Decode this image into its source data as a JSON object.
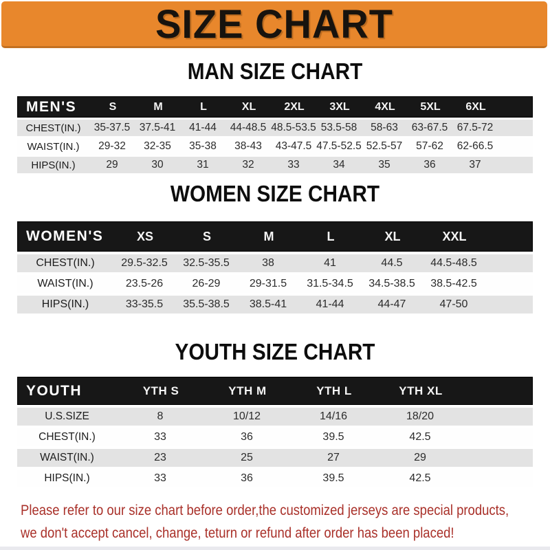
{
  "banner": {
    "title": "SIZE CHART",
    "bg_color": "#E8872C",
    "text_color": "#17130E"
  },
  "sections": [
    {
      "heading": "MAN SIZE CHART",
      "header_label": "MEN'S",
      "columns": [
        "S",
        "M",
        "L",
        "XL",
        "2XL",
        "3XL",
        "4XL",
        "5XL",
        "6XL"
      ],
      "rows": [
        {
          "label": "CHEST(IN.)",
          "values": [
            "35-37.5",
            "37.5-41",
            "41-44",
            "44-48.5",
            "48.5-53.5",
            "53.5-58",
            "58-63",
            "63-67.5",
            "67.5-72"
          ]
        },
        {
          "label": "WAIST(IN.)",
          "values": [
            "29-32",
            "32-35",
            "35-38",
            "38-43",
            "43-47.5",
            "47.5-52.5",
            "52.5-57",
            "57-62",
            "62-66.5"
          ]
        },
        {
          "label": "HIPS(IN.)",
          "values": [
            "29",
            "30",
            "31",
            "32",
            "33",
            "34",
            "35",
            "36",
            "37"
          ]
        }
      ]
    },
    {
      "heading": "WOMEN SIZE CHART",
      "header_label": "WOMEN'S",
      "columns": [
        "XS",
        "S",
        "M",
        "L",
        "XL",
        "XXL"
      ],
      "rows": [
        {
          "label": "CHEST(IN.)",
          "values": [
            "29.5-32.5",
            "32.5-35.5",
            "38",
            "41",
            "44.5",
            "44.5-48.5"
          ]
        },
        {
          "label": "WAIST(IN.)",
          "values": [
            "23.5-26",
            "26-29",
            "29-31.5",
            "31.5-34.5",
            "34.5-38.5",
            "38.5-42.5"
          ]
        },
        {
          "label": "HIPS(IN.)",
          "values": [
            "33-35.5",
            "35.5-38.5",
            "38.5-41",
            "41-44",
            "44-47",
            "47-50"
          ]
        }
      ]
    },
    {
      "heading": "YOUTH SIZE CHART",
      "header_label": "YOUTH",
      "columns": [
        "YTH S",
        "YTH M",
        "YTH L",
        "YTH XL"
      ],
      "rows": [
        {
          "label": "U.S.SIZE",
          "values": [
            "8",
            "10/12",
            "14/16",
            "18/20"
          ]
        },
        {
          "label": "CHEST(IN.)",
          "values": [
            "33",
            "36",
            "39.5",
            "42.5"
          ]
        },
        {
          "label": "WAIST(IN.)",
          "values": [
            "23",
            "25",
            "27",
            "29"
          ]
        },
        {
          "label": "HIPS(IN.)",
          "values": [
            "33",
            "36",
            "39.5",
            "42.5"
          ]
        }
      ]
    }
  ],
  "table_colors": {
    "header_bg": "#171717",
    "header_text": "#FFFFFF",
    "stripe_gray": "#E3E3E3",
    "stripe_white": "#FEFEFE"
  },
  "disclaimer": {
    "line1": "Please refer to our size chart before order,the customized jerseys are special products,",
    "line2": "we don't accept cancel, change, teturn or refund after order has been placed!",
    "color": "#A93029"
  }
}
